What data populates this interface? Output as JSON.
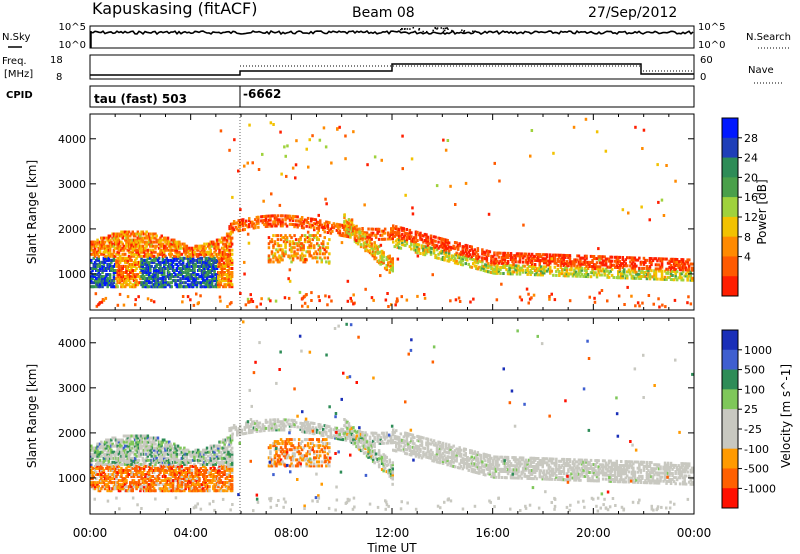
{
  "header": {
    "station": "Kapuskasing (fitACF)",
    "beam": "Beam 08",
    "date": "27/Sep/2012"
  },
  "top_panels": {
    "nsky_label": "N.Sky",
    "nsky_ticks_left": [
      "10^5",
      "10^0"
    ],
    "nsearch_label": "N.Search",
    "nsearch_ticks_right": [
      "10^5",
      "10^0"
    ],
    "freq_label": "Freq.",
    "freq_unit": "[MHz]",
    "freq_ticks": [
      "18",
      "8"
    ],
    "nave_label": "Nave",
    "nave_ticks": [
      "60",
      "0"
    ],
    "cpid_label": "CPID",
    "cpid_mode": "tau (fast) 503",
    "cpid_value": "-6662"
  },
  "colors": {
    "power": [
      "#0018ff",
      "#1f3fb8",
      "#2e8c57",
      "#4aa04a",
      "#9fd23c",
      "#f2c200",
      "#ff8a00",
      "#ff5a00",
      "#ff1e00"
    ],
    "velocity": [
      "#1a2fb8",
      "#3f5fd0",
      "#2e8c57",
      "#7fc75a",
      "#c8c8c0",
      "#c8c8c0",
      "#ff9a00",
      "#ff6000",
      "#ff1000"
    ],
    "frame": "#000000"
  },
  "chart_data": [
    {
      "type": "heatmap",
      "title": "",
      "xlabel": "Time UT",
      "ylabel": "Slant Range [km]",
      "x_ticks": [
        "00:00",
        "04:00",
        "08:00",
        "12:00",
        "16:00",
        "20:00",
        "00:00"
      ],
      "xlim": [
        0,
        24
      ],
      "y_ticks": [
        "1000",
        "2000",
        "3000",
        "4000"
      ],
      "ylim": [
        200,
        4550
      ],
      "colorbar": {
        "label": "Power [dB]",
        "ticks": [
          "28",
          "24",
          "20",
          "16",
          "12",
          "8",
          "4"
        ],
        "range": [
          0,
          30
        ]
      }
    },
    {
      "type": "heatmap",
      "title": "",
      "xlabel": "Time UT",
      "ylabel": "Slant Range [km]",
      "x_ticks": [
        "00:00",
        "04:00",
        "08:00",
        "12:00",
        "16:00",
        "20:00",
        "00:00"
      ],
      "xlim": [
        0,
        24
      ],
      "y_ticks": [
        "1000",
        "2000",
        "3000",
        "4000"
      ],
      "ylim": [
        200,
        4550
      ],
      "colorbar": {
        "label": "Velocity [m s^-1]",
        "ticks": [
          "1000",
          "500",
          "100",
          "25",
          "-25",
          "-100",
          "-500",
          "-1000"
        ],
        "range": [
          -1000,
          1000
        ]
      }
    }
  ],
  "xaxis_label": "Time UT"
}
